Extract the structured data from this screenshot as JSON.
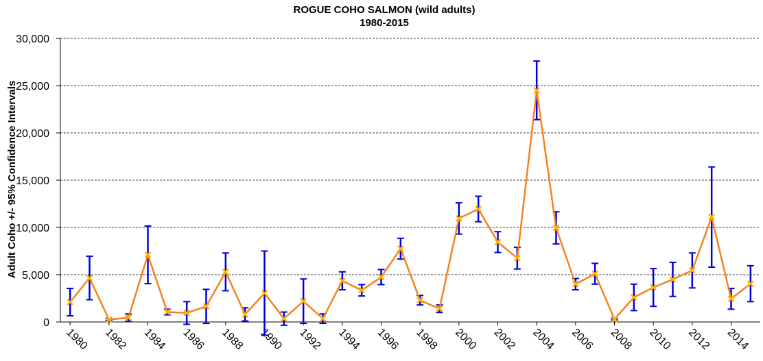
{
  "chart_data": {
    "type": "line",
    "title": "ROGUE COHO SALMON  (wild adults)",
    "subtitle": "1980-2015",
    "y_label": "Adult Coho +/- 95% Confidence Intervals",
    "x": [
      1980,
      1981,
      1982,
      1983,
      1984,
      1985,
      1986,
      1987,
      1988,
      1989,
      1990,
      1991,
      1992,
      1993,
      1994,
      1995,
      1996,
      1997,
      1998,
      1999,
      2000,
      2001,
      2002,
      2003,
      2004,
      2005,
      2006,
      2007,
      2008,
      2009,
      2010,
      2011,
      2012,
      2013,
      2014,
      2015
    ],
    "series": [
      {
        "name": "Adult Coho",
        "color": "#f5821f",
        "marker_color": "#ffb000",
        "error_color": "#0000dd",
        "values": [
          2100,
          4650,
          250,
          450,
          7100,
          1050,
          950,
          1650,
          5300,
          800,
          3050,
          350,
          2200,
          350,
          4350,
          3350,
          4750,
          7750,
          2300,
          1400,
          10950,
          11950,
          8450,
          6750,
          24500,
          9950,
          4000,
          5100,
          300,
          2600,
          3650,
          4500,
          5450,
          11100,
          2450,
          4050
        ],
        "errors": [
          1450,
          2300,
          100,
          400,
          3050,
          300,
          1200,
          1800,
          2000,
          700,
          4450,
          700,
          2350,
          500,
          950,
          600,
          800,
          1100,
          500,
          400,
          1650,
          1350,
          1100,
          1150,
          3100,
          1700,
          600,
          1100,
          100,
          1400,
          2000,
          1800,
          1850,
          5300,
          1100,
          1900
        ]
      }
    ],
    "xlim": [
      1979.5,
      2015.5
    ],
    "xticks": [
      1980,
      1982,
      1984,
      1986,
      1988,
      1990,
      1992,
      1994,
      1996,
      1998,
      2000,
      2002,
      2004,
      2006,
      2008,
      2010,
      2012,
      2014
    ],
    "ylim": [
      0,
      30000
    ],
    "yticks": [
      0,
      {
        "value": 5000,
        "label": "5,000"
      },
      {
        "value": 10000,
        "label": "10,000"
      },
      {
        "value": 15000,
        "label": "15,000"
      },
      {
        "value": 20000,
        "label": "20,000"
      },
      {
        "value": 25000,
        "label": "25,000"
      },
      {
        "value": 30000,
        "label": "30,000"
      }
    ],
    "grid": true
  }
}
